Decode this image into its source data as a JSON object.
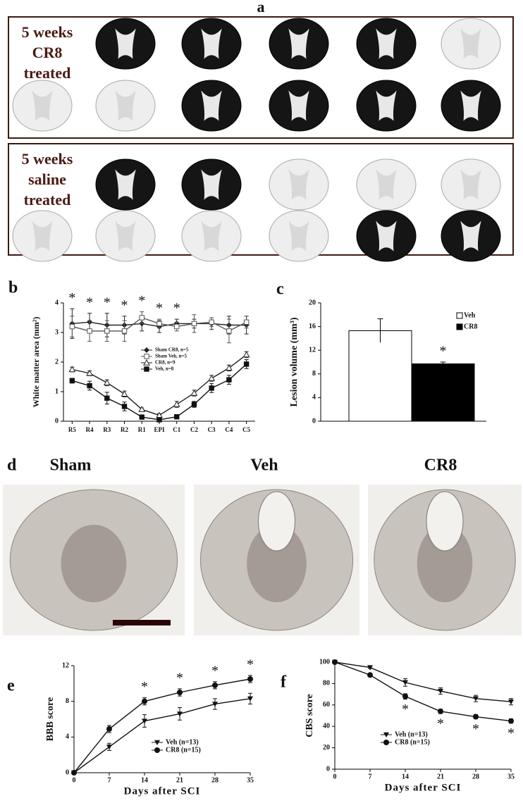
{
  "figure": {
    "panel_a": {
      "label": "a",
      "groups": [
        {
          "lines": [
            "5 weeks",
            "CR8",
            "treated"
          ]
        },
        {
          "lines": [
            "5 weeks",
            "saline",
            "treated"
          ]
        }
      ]
    },
    "panel_d": {
      "label": "d",
      "titles": [
        "Sham",
        "Veh",
        "CR8"
      ]
    }
  },
  "chart_data": [
    {
      "type": "line",
      "label": "b",
      "ylabel": "White matter area (mm²)",
      "categories": [
        "R5",
        "R4",
        "R3",
        "R2",
        "R1",
        "EPI",
        "C1",
        "C2",
        "C3",
        "C4",
        "C5"
      ],
      "ylim": [
        0,
        4
      ],
      "yticks": [
        0,
        1,
        2,
        3,
        4
      ],
      "significance": [
        "*",
        "*",
        "*",
        "*",
        "*",
        "*",
        "*",
        null,
        null,
        null,
        null
      ],
      "series": [
        {
          "name": "Sham CR8, n=5",
          "color": "#222222",
          "marker": "diamond",
          "values": [
            3.3,
            3.35,
            3.25,
            3.25,
            3.3,
            3.2,
            3.3,
            3.3,
            3.3,
            3.25,
            3.25
          ],
          "errors": [
            0.5,
            0.3,
            0.4,
            0.3,
            0.25,
            0.2,
            0.15,
            0.15,
            0.2,
            0.3,
            0.3
          ]
        },
        {
          "name": "Sham Veh, n=5",
          "color": "#555555",
          "marker": "square-open",
          "values": [
            3.2,
            3.05,
            3.05,
            3.05,
            3.5,
            3.3,
            3.2,
            3.3,
            3.35,
            3.05,
            3.35
          ],
          "errors": [
            0.35,
            0.35,
            0.35,
            0.35,
            0.2,
            0.15,
            0.15,
            0.3,
            0.15,
            0.4,
            0.2
          ]
        },
        {
          "name": "CR8, n=9",
          "color": "#222222",
          "marker": "triangle",
          "values": [
            1.75,
            1.62,
            1.3,
            0.92,
            0.4,
            0.2,
            0.57,
            0.95,
            1.45,
            1.8,
            2.25
          ],
          "errors": [
            0.08,
            0.08,
            0.1,
            0.1,
            0.05,
            0.05,
            0.1,
            0.1,
            0.1,
            0.1,
            0.1
          ]
        },
        {
          "name": "Veh, n=8",
          "color": "#111111",
          "marker": "square",
          "values": [
            1.37,
            1.2,
            0.78,
            0.5,
            0.14,
            0.05,
            0.15,
            0.57,
            1.12,
            1.4,
            1.93
          ],
          "errors": [
            0.08,
            0.15,
            0.2,
            0.15,
            0.05,
            0.03,
            0.05,
            0.1,
            0.15,
            0.15,
            0.15
          ]
        }
      ]
    },
    {
      "type": "bar",
      "label": "c",
      "ylabel": "Lesion volume (mm³)",
      "ylim": [
        0,
        20
      ],
      "yticks": [
        0,
        4,
        8,
        12,
        16,
        20
      ],
      "series": [
        {
          "name": "Veh",
          "color": "#ffffff",
          "values": [
            15.3
          ],
          "errors": [
            2.0
          ]
        },
        {
          "name": "CR8",
          "color": "#000000",
          "values": [
            9.7
          ],
          "errors": [
            0.3
          ],
          "significance": "*"
        }
      ]
    },
    {
      "type": "line",
      "label": "e",
      "ylabel": "BBB score",
      "xlabel": "Days after SCI",
      "x": [
        0,
        7,
        14,
        21,
        28,
        35
      ],
      "xlim": [
        0,
        35
      ],
      "xticks": [
        0,
        7,
        14,
        21,
        28,
        35
      ],
      "ylim": [
        0,
        12
      ],
      "yticks": [
        0,
        4,
        8,
        12
      ],
      "significance_position": "above",
      "significance": [
        null,
        null,
        "*",
        "*",
        "*",
        "*"
      ],
      "series": [
        {
          "name": "Veh (n=13)",
          "color": "#111111",
          "marker": "triangle-down",
          "values": [
            0,
            2.9,
            5.8,
            6.6,
            7.7,
            8.3
          ],
          "errors": [
            0,
            0.4,
            0.7,
            0.7,
            0.6,
            0.6
          ]
        },
        {
          "name": "CR8 (n=15)",
          "color": "#111111",
          "marker": "circle",
          "values": [
            0,
            4.9,
            8.0,
            9.0,
            9.8,
            10.5
          ],
          "errors": [
            0,
            0.4,
            0.4,
            0.4,
            0.4,
            0.4
          ]
        }
      ]
    },
    {
      "type": "line",
      "label": "f",
      "ylabel": "CBS score",
      "xlabel": "Days after SCI",
      "x": [
        0,
        7,
        14,
        21,
        28,
        35
      ],
      "xlim": [
        0,
        35
      ],
      "xticks": [
        0,
        7,
        14,
        21,
        28,
        35
      ],
      "ylim": [
        0,
        100
      ],
      "yticks": [
        0,
        20,
        40,
        60,
        80,
        100
      ],
      "significance_position": "below",
      "significance": [
        null,
        null,
        "*",
        "*",
        "*",
        "*"
      ],
      "series": [
        {
          "name": "Veh (n=13)",
          "color": "#111111",
          "marker": "triangle-down",
          "values": [
            100,
            95,
            81,
            73,
            66,
            63
          ],
          "errors": [
            0,
            1,
            3.5,
            3,
            3,
            3
          ]
        },
        {
          "name": "CR8 (n=15)",
          "color": "#111111",
          "marker": "circle",
          "values": [
            100,
            88,
            68,
            54,
            49,
            45
          ],
          "errors": [
            0,
            1.5,
            2.5,
            2,
            2,
            2
          ]
        }
      ]
    }
  ]
}
